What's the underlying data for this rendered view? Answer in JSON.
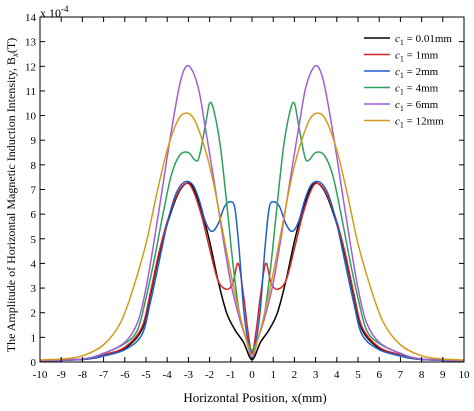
{
  "chart_data": {
    "type": "line",
    "xlabel": "Horizontal Position, x(mm)",
    "ylabel": "The Amplitude of Horizontal Magnetic Induction Intensity, B",
    "ylabel_sub": "x",
    "ylabel_unit": "(T)",
    "y_multiplier_base": "x 10",
    "y_multiplier_exp": "-4",
    "xlim": [
      -10,
      10
    ],
    "ylim": [
      0,
      14
    ],
    "xticks": [
      "-10",
      "-9",
      "-8",
      "-7",
      "-6",
      "-5",
      "-4",
      "-3",
      "-2",
      "-1",
      "0",
      "1",
      "2",
      "3",
      "4",
      "5",
      "6",
      "7",
      "8",
      "9",
      "10"
    ],
    "yticks": [
      "0",
      "1",
      "2",
      "3",
      "4",
      "5",
      "6",
      "7",
      "8",
      "9",
      "10",
      "11",
      "12",
      "13",
      "14"
    ],
    "legend_position": "top-right",
    "grid": false,
    "series": [
      {
        "name_prefix": "c",
        "name_sub": "1",
        "name_suffix": " = 0.01mm",
        "color": "#000000",
        "points": [
          [
            -10,
            0.05
          ],
          [
            -8,
            0.1
          ],
          [
            -7,
            0.25
          ],
          [
            -6,
            0.55
          ],
          [
            -5.2,
            1.3
          ],
          [
            -4.8,
            2.7
          ],
          [
            -4.4,
            4.3
          ],
          [
            -4,
            5.6
          ],
          [
            -3.5,
            6.8
          ],
          [
            -3.1,
            7.25
          ],
          [
            -2.8,
            7.1
          ],
          [
            -2.4,
            6.2
          ],
          [
            -2,
            4.9
          ],
          [
            -1.6,
            3.3
          ],
          [
            -1.2,
            2.0
          ],
          [
            -0.8,
            1.3
          ],
          [
            -0.4,
            0.8
          ],
          [
            0,
            0.1
          ],
          [
            0.4,
            0.8
          ],
          [
            0.8,
            1.3
          ],
          [
            1.2,
            2.0
          ],
          [
            1.6,
            3.3
          ],
          [
            2,
            4.9
          ],
          [
            2.4,
            6.2
          ],
          [
            2.8,
            7.1
          ],
          [
            3.1,
            7.25
          ],
          [
            3.5,
            6.8
          ],
          [
            4,
            5.6
          ],
          [
            4.4,
            4.3
          ],
          [
            4.8,
            2.7
          ],
          [
            5.2,
            1.3
          ],
          [
            6,
            0.55
          ],
          [
            7,
            0.25
          ],
          [
            8,
            0.1
          ],
          [
            10,
            0.05
          ]
        ]
      },
      {
        "name_prefix": "c",
        "name_sub": "1",
        "name_suffix": " = 1mm",
        "color": "#d62728",
        "points": [
          [
            -10,
            0.05
          ],
          [
            -8,
            0.12
          ],
          [
            -7,
            0.3
          ],
          [
            -6,
            0.6
          ],
          [
            -5.2,
            1.4
          ],
          [
            -4.8,
            2.8
          ],
          [
            -4.4,
            4.4
          ],
          [
            -4,
            5.7
          ],
          [
            -3.5,
            6.85
          ],
          [
            -3.1,
            7.25
          ],
          [
            -2.8,
            7.0
          ],
          [
            -2.4,
            6.0
          ],
          [
            -2,
            4.6
          ],
          [
            -1.6,
            3.3
          ],
          [
            -1.2,
            2.95
          ],
          [
            -0.9,
            3.2
          ],
          [
            -0.65,
            4.0
          ],
          [
            -0.4,
            2.7
          ],
          [
            -0.2,
            1.3
          ],
          [
            0,
            0.35
          ],
          [
            0.2,
            1.3
          ],
          [
            0.4,
            2.7
          ],
          [
            0.65,
            4.0
          ],
          [
            0.9,
            3.2
          ],
          [
            1.2,
            2.95
          ],
          [
            1.6,
            3.3
          ],
          [
            2,
            4.6
          ],
          [
            2.4,
            6.0
          ],
          [
            2.8,
            7.0
          ],
          [
            3.1,
            7.25
          ],
          [
            3.5,
            6.85
          ],
          [
            4,
            5.7
          ],
          [
            4.4,
            4.4
          ],
          [
            4.8,
            2.8
          ],
          [
            5.2,
            1.4
          ],
          [
            6,
            0.6
          ],
          [
            7,
            0.3
          ],
          [
            8,
            0.12
          ],
          [
            10,
            0.05
          ]
        ]
      },
      {
        "name_prefix": "c",
        "name_sub": "1",
        "name_suffix": " = 2mm",
        "color": "#1f5fc8",
        "points": [
          [
            -10,
            0.05
          ],
          [
            -8,
            0.1
          ],
          [
            -7,
            0.25
          ],
          [
            -6,
            0.5
          ],
          [
            -5.2,
            1.1
          ],
          [
            -4.8,
            2.4
          ],
          [
            -4.4,
            4.0
          ],
          [
            -4,
            5.6
          ],
          [
            -3.6,
            6.8
          ],
          [
            -3.2,
            7.3
          ],
          [
            -2.8,
            7.2
          ],
          [
            -2.5,
            6.6
          ],
          [
            -2.2,
            5.7
          ],
          [
            -1.9,
            5.3
          ],
          [
            -1.6,
            5.6
          ],
          [
            -1.3,
            6.3
          ],
          [
            -1.0,
            6.5
          ],
          [
            -0.8,
            6.2
          ],
          [
            -0.6,
            4.5
          ],
          [
            -0.4,
            2.2
          ],
          [
            -0.2,
            0.9
          ],
          [
            0,
            0.4
          ],
          [
            0.2,
            0.9
          ],
          [
            0.4,
            2.2
          ],
          [
            0.6,
            4.5
          ],
          [
            0.8,
            6.2
          ],
          [
            1.0,
            6.5
          ],
          [
            1.3,
            6.3
          ],
          [
            1.6,
            5.6
          ],
          [
            1.9,
            5.3
          ],
          [
            2.2,
            5.7
          ],
          [
            2.5,
            6.6
          ],
          [
            2.8,
            7.2
          ],
          [
            3.2,
            7.3
          ],
          [
            3.6,
            6.8
          ],
          [
            4,
            5.6
          ],
          [
            4.4,
            4.0
          ],
          [
            4.8,
            2.4
          ],
          [
            5.2,
            1.1
          ],
          [
            6,
            0.5
          ],
          [
            7,
            0.25
          ],
          [
            8,
            0.1
          ],
          [
            10,
            0.05
          ]
        ]
      },
      {
        "name_prefix": "c",
        "name_sub": "1",
        "name_suffix": " = 4mm",
        "color": "#2ca05a",
        "points": [
          [
            -10,
            0.05
          ],
          [
            -8,
            0.12
          ],
          [
            -7,
            0.35
          ],
          [
            -6,
            0.75
          ],
          [
            -5.4,
            1.3
          ],
          [
            -5,
            2.6
          ],
          [
            -4.6,
            4.2
          ],
          [
            -4.2,
            6.0
          ],
          [
            -3.8,
            7.6
          ],
          [
            -3.4,
            8.4
          ],
          [
            -3.0,
            8.5
          ],
          [
            -2.7,
            8.2
          ],
          [
            -2.5,
            8.3
          ],
          [
            -2.2,
            9.6
          ],
          [
            -2.0,
            10.5
          ],
          [
            -1.8,
            10.2
          ],
          [
            -1.5,
            8.8
          ],
          [
            -1.2,
            6.5
          ],
          [
            -0.9,
            4.0
          ],
          [
            -0.6,
            2.0
          ],
          [
            -0.3,
            1.0
          ],
          [
            0,
            0.5
          ],
          [
            0.3,
            1.0
          ],
          [
            0.6,
            2.0
          ],
          [
            0.9,
            4.0
          ],
          [
            1.2,
            6.5
          ],
          [
            1.5,
            8.8
          ],
          [
            1.8,
            10.2
          ],
          [
            2.0,
            10.5
          ],
          [
            2.2,
            9.6
          ],
          [
            2.5,
            8.3
          ],
          [
            2.7,
            8.2
          ],
          [
            3.0,
            8.5
          ],
          [
            3.4,
            8.4
          ],
          [
            3.8,
            7.6
          ],
          [
            4.2,
            6.0
          ],
          [
            4.6,
            4.2
          ],
          [
            5,
            2.6
          ],
          [
            5.4,
            1.3
          ],
          [
            6,
            0.75
          ],
          [
            7,
            0.35
          ],
          [
            8,
            0.12
          ],
          [
            10,
            0.05
          ]
        ]
      },
      {
        "name_prefix": "c",
        "name_sub": "1",
        "name_suffix": " = 6mm",
        "color": "#a05fd6",
        "points": [
          [
            -10,
            0.05
          ],
          [
            -8,
            0.12
          ],
          [
            -7,
            0.35
          ],
          [
            -6,
            0.8
          ],
          [
            -5.4,
            1.6
          ],
          [
            -5,
            3.0
          ],
          [
            -4.6,
            5.0
          ],
          [
            -4.2,
            7.2
          ],
          [
            -3.8,
            9.4
          ],
          [
            -3.4,
            11.3
          ],
          [
            -3.1,
            12.0
          ],
          [
            -2.8,
            11.8
          ],
          [
            -2.5,
            11.0
          ],
          [
            -2.2,
            9.5
          ],
          [
            -1.8,
            7.4
          ],
          [
            -1.4,
            5.2
          ],
          [
            -1.0,
            3.2
          ],
          [
            -0.6,
            1.8
          ],
          [
            -0.3,
            1.0
          ],
          [
            0,
            0.2
          ],
          [
            0.3,
            1.0
          ],
          [
            0.6,
            1.8
          ],
          [
            1.0,
            3.2
          ],
          [
            1.4,
            5.2
          ],
          [
            1.8,
            7.4
          ],
          [
            2.2,
            9.5
          ],
          [
            2.5,
            11.0
          ],
          [
            2.8,
            11.8
          ],
          [
            3.1,
            12.0
          ],
          [
            3.4,
            11.3
          ],
          [
            3.8,
            9.4
          ],
          [
            4.2,
            7.2
          ],
          [
            4.6,
            5.0
          ],
          [
            5,
            3.0
          ],
          [
            5.4,
            1.6
          ],
          [
            6,
            0.8
          ],
          [
            7,
            0.35
          ],
          [
            8,
            0.12
          ],
          [
            10,
            0.05
          ]
        ]
      },
      {
        "name_prefix": "c",
        "name_sub": "1",
        "name_suffix": " = 12mm",
        "color": "#d49a1a",
        "points": [
          [
            -10,
            0.08
          ],
          [
            -9,
            0.12
          ],
          [
            -8,
            0.25
          ],
          [
            -7,
            0.7
          ],
          [
            -6.2,
            1.6
          ],
          [
            -5.6,
            3.0
          ],
          [
            -5,
            4.8
          ],
          [
            -4.5,
            6.8
          ],
          [
            -4,
            8.6
          ],
          [
            -3.5,
            9.8
          ],
          [
            -3.1,
            10.1
          ],
          [
            -2.7,
            9.8
          ],
          [
            -2.2,
            8.6
          ],
          [
            -1.8,
            7.2
          ],
          [
            -1.4,
            5.4
          ],
          [
            -1.0,
            3.6
          ],
          [
            -0.6,
            2.0
          ],
          [
            -0.3,
            1.0
          ],
          [
            0,
            0.3
          ],
          [
            0.3,
            1.0
          ],
          [
            0.6,
            2.0
          ],
          [
            1.0,
            3.6
          ],
          [
            1.4,
            5.4
          ],
          [
            1.8,
            7.2
          ],
          [
            2.2,
            8.6
          ],
          [
            2.7,
            9.8
          ],
          [
            3.1,
            10.1
          ],
          [
            3.5,
            9.8
          ],
          [
            4,
            8.6
          ],
          [
            4.5,
            6.8
          ],
          [
            5,
            4.8
          ],
          [
            5.6,
            3.0
          ],
          [
            6.2,
            1.6
          ],
          [
            7,
            0.7
          ],
          [
            8,
            0.25
          ],
          [
            9,
            0.12
          ],
          [
            10,
            0.08
          ]
        ]
      }
    ]
  }
}
